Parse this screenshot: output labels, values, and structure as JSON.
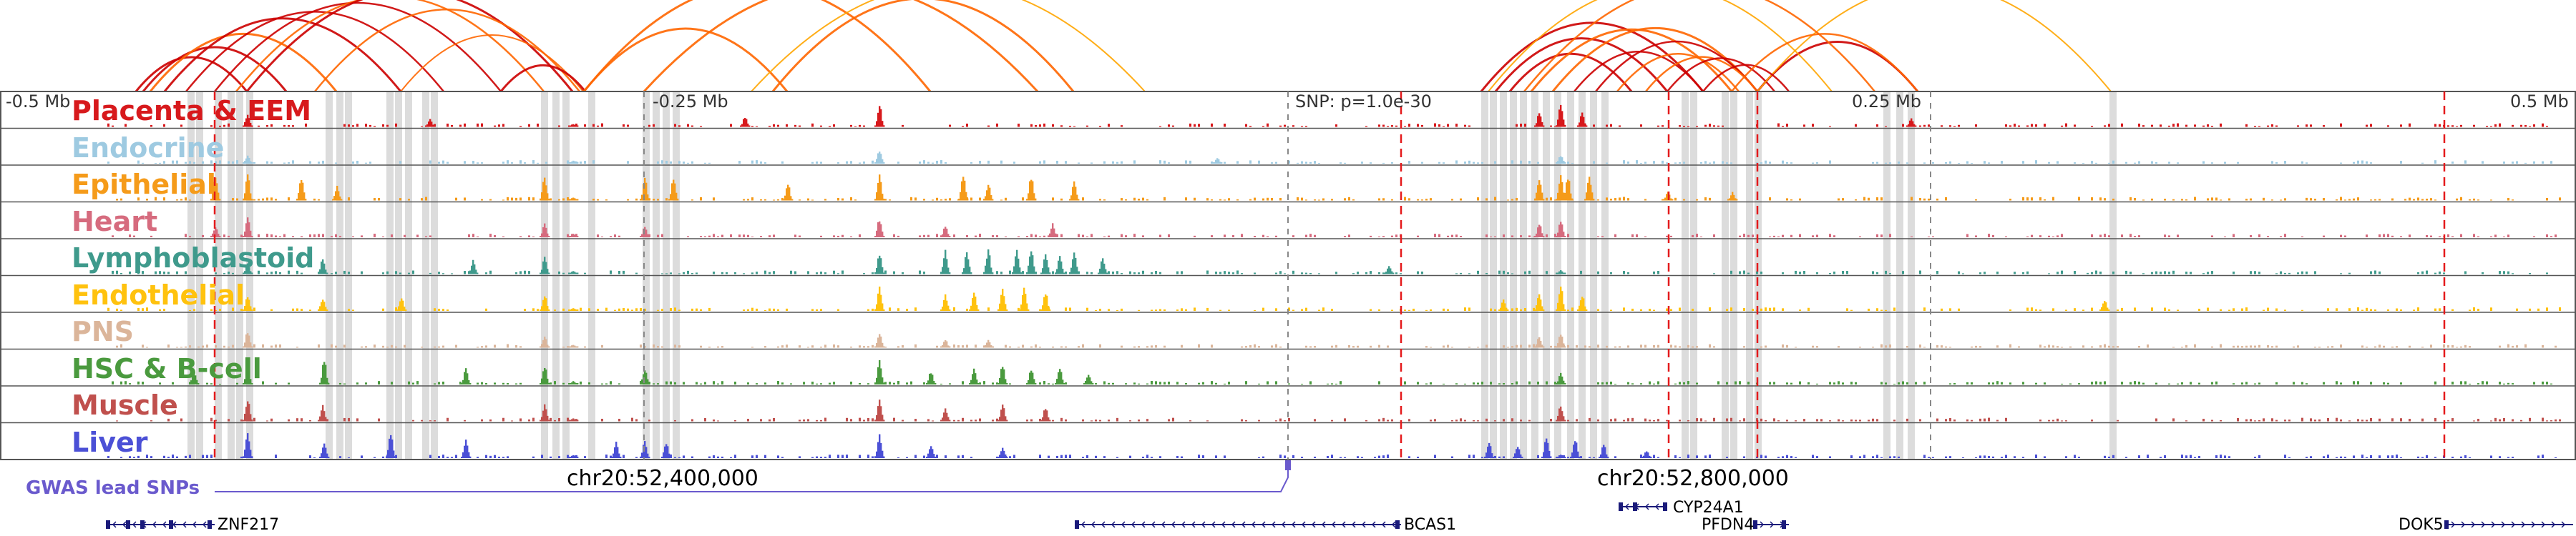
{
  "colors": {
    "grid": "#555555",
    "highlight": "#dcdcdc",
    "snp_line": "#e41a1c",
    "arc_dark": "#cc0000",
    "arc_mid": "#ff6600",
    "arc_light": "#ffa500",
    "gwas": "#6a5acd",
    "gene": "#1a1a7a"
  },
  "axis": {
    "ticks": [
      "-0.5 Mb",
      "-0.25 Mb",
      "0.25 Mb",
      "0.5 Mb"
    ],
    "snp_label": "SNP: p=1.0e-30"
  },
  "tracks": [
    {
      "name": "Placenta & EEM",
      "color": "#d7191c",
      "icon": "placenta-track"
    },
    {
      "name": "Endocrine",
      "color": "#9ecae1",
      "icon": "endocrine-track"
    },
    {
      "name": "Epithelial",
      "color": "#f59b1a",
      "icon": "epithelial-track"
    },
    {
      "name": "Heart",
      "color": "#d66b7e",
      "icon": "heart-track"
    },
    {
      "name": "Lymphoblastoid",
      "color": "#3f9a8c",
      "icon": "lymphoblastoid-track"
    },
    {
      "name": "Endothelial",
      "color": "#ffc20e",
      "icon": "endothelial-track"
    },
    {
      "name": "PNS",
      "color": "#dbb59a",
      "icon": "pns-track"
    },
    {
      "name": "HSC & B-cell",
      "color": "#4a9a3e",
      "icon": "hsc-track"
    },
    {
      "name": "Muscle",
      "color": "#c0504d",
      "icon": "muscle-track"
    },
    {
      "name": "Liver",
      "color": "#4b50d6",
      "icon": "liver-track"
    }
  ],
  "coordinates": [
    "chr20:52,400,000",
    "chr20:52,800,000"
  ],
  "gwas": {
    "label": "GWAS lead SNPs"
  },
  "genes": [
    "ZNF217",
    "BCAS1",
    "CYP24A1",
    "PFDN4",
    "DOK5"
  ]
}
